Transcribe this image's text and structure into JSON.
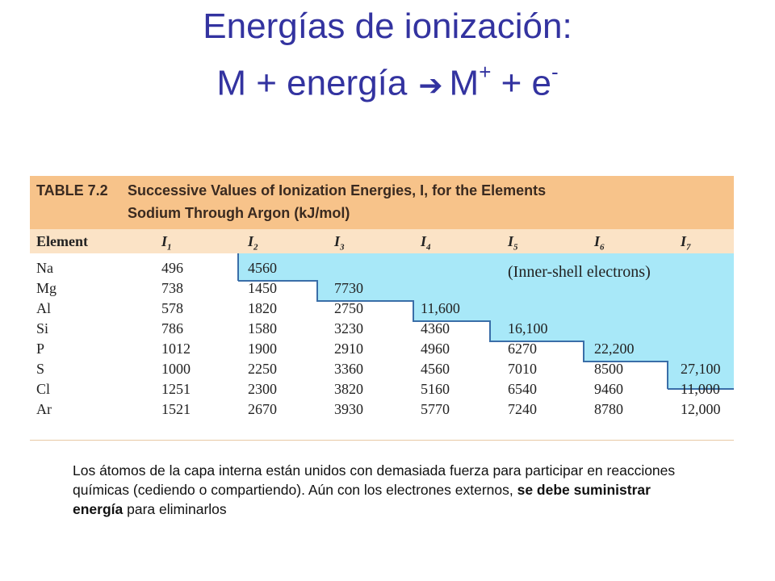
{
  "title": {
    "line1": "Energías de ionización:",
    "line2_a": "M + energía",
    "line2_b": "M",
    "line2_b_sup": "+",
    "line2_c": " + e",
    "line2_c_sup": "-"
  },
  "table": {
    "label": "TABLE 7.2",
    "caption_line1": "Successive Values of Ionization Energies, I, for the Elements",
    "caption_line2": "Sodium Through Argon (kJ/mol)",
    "col_element": "Element",
    "col_headers": [
      "1",
      "2",
      "3",
      "4",
      "5",
      "6",
      "7"
    ],
    "inner_shell_label": "(Inner-shell electrons)",
    "rows": [
      {
        "el": "Na",
        "v": [
          "496",
          "4560",
          "",
          "",
          "",
          "",
          ""
        ]
      },
      {
        "el": "Mg",
        "v": [
          "738",
          "1450",
          "7730",
          "",
          "",
          "",
          ""
        ]
      },
      {
        "el": "Al",
        "v": [
          "578",
          "1820",
          "2750",
          "11,600",
          "",
          "",
          ""
        ]
      },
      {
        "el": "Si",
        "v": [
          "786",
          "1580",
          "3230",
          "4360",
          "16,100",
          "",
          ""
        ]
      },
      {
        "el": "P",
        "v": [
          "1012",
          "1900",
          "2910",
          "4960",
          "6270",
          "22,200",
          ""
        ]
      },
      {
        "el": "S",
        "v": [
          "1000",
          "2250",
          "3360",
          "4560",
          "7010",
          "8500",
          "27,100"
        ]
      },
      {
        "el": "Cl",
        "v": [
          "1251",
          "2300",
          "3820",
          "5160",
          "6540",
          "9460",
          "11,000"
        ]
      },
      {
        "el": "Ar",
        "v": [
          "1521",
          "2670",
          "3930",
          "5770",
          "7240",
          "8780",
          "12,000"
        ]
      }
    ]
  },
  "caption": {
    "part1": "Los átomos de la capa interna están unidos con demasiada fuerza para participar en reacciones químicas (cediendo o compartiendo). Aún con los electrones externos, ",
    "bold": "se debe suministrar energía",
    "part2": " para eliminarlos"
  },
  "colors": {
    "title": "#3333a0",
    "table_header_bg": "#f7c38a",
    "inner_shell_bg": "#a8e8f8"
  }
}
